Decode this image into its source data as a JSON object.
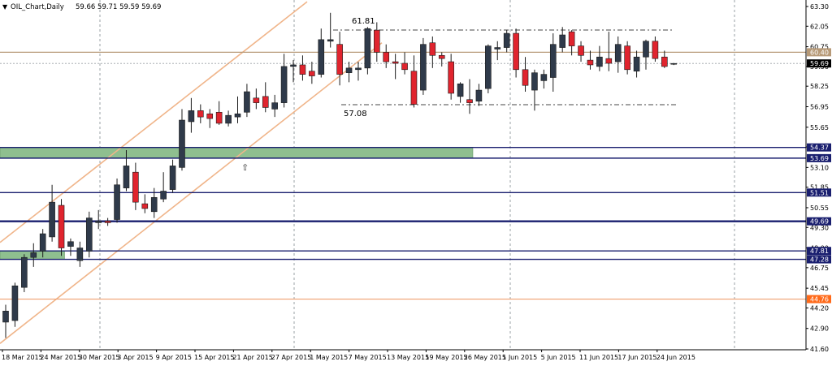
{
  "header": {
    "symbol_label": "OIL_Chart,Daily",
    "ohlc_label": "59.66 59.71 59.59 59.69"
  },
  "chart_data": {
    "type": "candlestick",
    "title": "OIL_Chart,Daily",
    "subtitle": "59.66 59.71 59.59 59.69",
    "y_ticks": [
      "63.30",
      "62.05",
      "60.75",
      "59.50",
      "58.25",
      "56.95",
      "55.65",
      "54.40",
      "53.10",
      "51.85",
      "50.55",
      "49.30",
      "48.00",
      "46.75",
      "45.45",
      "44.20",
      "42.90",
      "41.60"
    ],
    "ylim": [
      41.2,
      63.6
    ],
    "x_tick_labels": [
      "18 Mar 2015",
      "24 Mar 2015",
      "30 Mar 2015",
      "3 Apr 2015",
      "9 Apr 2015",
      "15 Apr 2015",
      "21 Apr 2015",
      "27 Apr 2015",
      "1 May 2015",
      "7 May 2015",
      "13 May 2015",
      "19 May 2015",
      "26 May 2015",
      "1 Jun 2015",
      "5 Jun 2015",
      "11 Jun 2015",
      "17 Jun 2015",
      "24 Jun 2015"
    ],
    "candles": [
      {
        "o": 43.3,
        "h": 44.4,
        "l": 42.3,
        "c": 44.0
      },
      {
        "o": 43.4,
        "h": 45.8,
        "l": 43.0,
        "c": 45.6
      },
      {
        "o": 45.5,
        "h": 47.6,
        "l": 45.2,
        "c": 47.4
      },
      {
        "o": 47.4,
        "h": 48.3,
        "l": 46.8,
        "c": 47.7
      },
      {
        "o": 47.8,
        "h": 49.2,
        "l": 47.4,
        "c": 48.9
      },
      {
        "o": 48.7,
        "h": 52.0,
        "l": 48.4,
        "c": 50.9
      },
      {
        "o": 50.7,
        "h": 51.1,
        "l": 47.5,
        "c": 48.0
      },
      {
        "o": 48.1,
        "h": 48.6,
        "l": 47.5,
        "c": 48.4
      },
      {
        "o": 47.2,
        "h": 48.4,
        "l": 46.8,
        "c": 48.0
      },
      {
        "o": 47.8,
        "h": 50.3,
        "l": 47.4,
        "c": 49.9
      },
      {
        "o": 49.6,
        "h": 50.4,
        "l": 49.2,
        "c": 49.7
      },
      {
        "o": 49.7,
        "h": 49.9,
        "l": 49.4,
        "c": 49.6
      },
      {
        "o": 49.8,
        "h": 52.4,
        "l": 49.6,
        "c": 52.0
      },
      {
        "o": 51.8,
        "h": 54.2,
        "l": 51.6,
        "c": 53.2
      },
      {
        "o": 52.8,
        "h": 53.4,
        "l": 50.4,
        "c": 50.9
      },
      {
        "o": 50.8,
        "h": 51.4,
        "l": 50.2,
        "c": 50.5
      },
      {
        "o": 50.3,
        "h": 51.8,
        "l": 49.9,
        "c": 51.2
      },
      {
        "o": 51.1,
        "h": 52.8,
        "l": 50.9,
        "c": 51.6
      },
      {
        "o": 51.7,
        "h": 53.6,
        "l": 51.5,
        "c": 53.2
      },
      {
        "o": 53.1,
        "h": 56.8,
        "l": 52.9,
        "c": 56.1
      },
      {
        "o": 56.0,
        "h": 57.5,
        "l": 55.3,
        "c": 56.7
      },
      {
        "o": 56.7,
        "h": 57.1,
        "l": 55.9,
        "c": 56.3
      },
      {
        "o": 56.5,
        "h": 56.8,
        "l": 55.6,
        "c": 56.2
      },
      {
        "o": 56.6,
        "h": 57.3,
        "l": 55.8,
        "c": 55.9
      },
      {
        "o": 55.9,
        "h": 56.7,
        "l": 55.7,
        "c": 56.4
      },
      {
        "o": 56.3,
        "h": 57.6,
        "l": 55.9,
        "c": 56.5
      },
      {
        "o": 56.6,
        "h": 58.4,
        "l": 56.3,
        "c": 57.9
      },
      {
        "o": 57.5,
        "h": 58.1,
        "l": 56.8,
        "c": 57.2
      },
      {
        "o": 57.6,
        "h": 58.5,
        "l": 56.6,
        "c": 56.9
      },
      {
        "o": 56.8,
        "h": 57.7,
        "l": 56.3,
        "c": 57.2
      },
      {
        "o": 57.2,
        "h": 60.3,
        "l": 56.9,
        "c": 59.5
      },
      {
        "o": 59.5,
        "h": 59.9,
        "l": 58.5,
        "c": 59.6
      },
      {
        "o": 59.6,
        "h": 60.2,
        "l": 58.6,
        "c": 59.0
      },
      {
        "o": 59.2,
        "h": 59.8,
        "l": 58.4,
        "c": 58.9
      },
      {
        "o": 59.0,
        "h": 61.9,
        "l": 58.8,
        "c": 61.2
      },
      {
        "o": 61.1,
        "h": 62.9,
        "l": 60.7,
        "c": 61.2
      },
      {
        "o": 60.9,
        "h": 61.7,
        "l": 58.3,
        "c": 59.0
      },
      {
        "o": 59.1,
        "h": 59.8,
        "l": 58.5,
        "c": 59.4
      },
      {
        "o": 59.3,
        "h": 59.8,
        "l": 58.6,
        "c": 59.4
      },
      {
        "o": 59.4,
        "h": 62.0,
        "l": 59.0,
        "c": 61.9
      },
      {
        "o": 61.8,
        "h": 62.3,
        "l": 59.8,
        "c": 60.4
      },
      {
        "o": 60.4,
        "h": 60.9,
        "l": 59.4,
        "c": 59.8
      },
      {
        "o": 59.8,
        "h": 60.3,
        "l": 58.7,
        "c": 59.7
      },
      {
        "o": 59.7,
        "h": 60.4,
        "l": 59.0,
        "c": 59.3
      },
      {
        "o": 59.2,
        "h": 60.2,
        "l": 56.9,
        "c": 57.1
      },
      {
        "o": 58.0,
        "h": 61.3,
        "l": 57.7,
        "c": 60.9
      },
      {
        "o": 61.0,
        "h": 61.4,
        "l": 59.4,
        "c": 60.2
      },
      {
        "o": 60.2,
        "h": 60.4,
        "l": 59.5,
        "c": 60.0
      },
      {
        "o": 59.8,
        "h": 60.3,
        "l": 57.4,
        "c": 57.8
      },
      {
        "o": 57.6,
        "h": 58.5,
        "l": 57.2,
        "c": 58.4
      },
      {
        "o": 57.4,
        "h": 58.7,
        "l": 56.5,
        "c": 57.2
      },
      {
        "o": 57.3,
        "h": 58.4,
        "l": 57.0,
        "c": 58.0
      },
      {
        "o": 58.1,
        "h": 60.9,
        "l": 57.8,
        "c": 60.8
      },
      {
        "o": 60.6,
        "h": 61.1,
        "l": 59.9,
        "c": 60.7
      },
      {
        "o": 60.7,
        "h": 61.8,
        "l": 60.4,
        "c": 61.6
      },
      {
        "o": 61.6,
        "h": 61.9,
        "l": 58.8,
        "c": 59.3
      },
      {
        "o": 59.3,
        "h": 60.1,
        "l": 57.9,
        "c": 58.3
      },
      {
        "o": 58.0,
        "h": 59.3,
        "l": 56.7,
        "c": 59.1
      },
      {
        "o": 58.6,
        "h": 59.3,
        "l": 58.1,
        "c": 59.0
      },
      {
        "o": 58.8,
        "h": 61.6,
        "l": 57.9,
        "c": 60.9
      },
      {
        "o": 60.7,
        "h": 62.0,
        "l": 60.4,
        "c": 61.5
      },
      {
        "o": 61.7,
        "h": 61.8,
        "l": 60.2,
        "c": 60.8
      },
      {
        "o": 60.8,
        "h": 61.1,
        "l": 59.8,
        "c": 60.2
      },
      {
        "o": 59.9,
        "h": 60.5,
        "l": 59.3,
        "c": 59.6
      },
      {
        "o": 59.5,
        "h": 60.8,
        "l": 59.2,
        "c": 60.1
      },
      {
        "o": 60.0,
        "h": 61.7,
        "l": 59.2,
        "c": 59.7
      },
      {
        "o": 59.8,
        "h": 61.4,
        "l": 59.1,
        "c": 60.9
      },
      {
        "o": 60.8,
        "h": 61.1,
        "l": 59.0,
        "c": 59.3
      },
      {
        "o": 59.2,
        "h": 60.5,
        "l": 58.8,
        "c": 60.1
      },
      {
        "o": 60.1,
        "h": 61.2,
        "l": 59.3,
        "c": 61.1
      },
      {
        "o": 61.1,
        "h": 61.4,
        "l": 59.8,
        "c": 60.0
      },
      {
        "o": 60.1,
        "h": 60.5,
        "l": 59.4,
        "c": 59.5
      },
      {
        "o": 59.66,
        "h": 59.71,
        "l": 59.59,
        "c": 59.69
      }
    ],
    "h_levels": [
      {
        "label": "60.40",
        "value": 60.4,
        "style": "tan",
        "badge_bg": "#b79a78",
        "badge_fg": "#ffffff"
      },
      {
        "label": "59.69",
        "value": 59.69,
        "style": "current",
        "badge_bg": "#000000",
        "badge_fg": "#ffffff"
      },
      {
        "label": "54.37",
        "value": 54.37,
        "style": "navy",
        "badge_bg": "#1a1f6f",
        "badge_fg": "#ffffff"
      },
      {
        "label": "53.69",
        "value": 53.69,
        "style": "navy",
        "badge_bg": "#1a1f6f",
        "badge_fg": "#ffffff"
      },
      {
        "label": "51.51",
        "value": 51.51,
        "style": "navy",
        "badge_bg": "#1a1f6f",
        "badge_fg": "#ffffff"
      },
      {
        "label": "49.69",
        "value": 49.69,
        "style": "navy",
        "badge_bg": "#1a1f6f",
        "badge_fg": "#ffffff"
      },
      {
        "label": "47.81",
        "value": 47.81,
        "style": "navy",
        "badge_bg": "#1a1f6f",
        "badge_fg": "#ffffff"
      },
      {
        "label": "47.28",
        "value": 47.28,
        "style": "navy",
        "badge_bg": "#1a1f6f",
        "badge_fg": "#ffffff"
      },
      {
        "label": "44.76",
        "value": 44.76,
        "style": "orange",
        "badge_bg": "#ff6a1a",
        "badge_fg": "#ffffff"
      }
    ],
    "zones": [
      {
        "from": 53.69,
        "to": 54.37,
        "end_candle": 50
      },
      {
        "from": 47.28,
        "to": 47.81,
        "end_candle": 6
      }
    ],
    "annotations": [
      {
        "text": "61.81",
        "value": 61.81
      },
      {
        "text": "57.08",
        "value": 57.08
      }
    ],
    "colors": {
      "bull": "#2f3a4a",
      "bear": "#e0242e",
      "channel": "#f0b58a",
      "zone": "#8fbf8f",
      "navy": "#1a1f6f",
      "tan": "#b79a78"
    }
  }
}
